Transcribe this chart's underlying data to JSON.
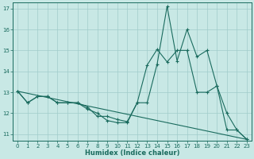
{
  "background_color": "#c8e8e5",
  "grid_color": "#a0ccca",
  "line_color": "#1a6b5e",
  "xlabel": "Humidex (Indice chaleur)",
  "xlim": [
    -0.5,
    23.5
  ],
  "ylim": [
    10.7,
    17.3
  ],
  "yticks": [
    11,
    12,
    13,
    14,
    15,
    16,
    17
  ],
  "xticks": [
    0,
    1,
    2,
    3,
    4,
    5,
    6,
    7,
    8,
    9,
    10,
    11,
    12,
    13,
    14,
    15,
    16,
    17,
    18,
    19,
    20,
    21,
    22,
    23
  ],
  "line1_x": [
    0,
    1,
    2,
    3,
    4,
    5,
    6,
    7,
    8,
    9,
    10,
    11,
    12,
    13,
    14,
    15,
    16,
    17,
    18,
    19,
    20,
    21,
    22,
    23
  ],
  "line1_y": [
    13.05,
    12.5,
    12.8,
    12.8,
    12.5,
    12.5,
    12.5,
    12.3,
    11.85,
    11.85,
    11.7,
    11.6,
    12.5,
    12.5,
    14.35,
    17.1,
    14.5,
    16.0,
    14.7,
    15.0,
    13.3,
    12.0,
    11.2,
    10.75
  ],
  "line2_x": [
    0,
    1,
    2,
    3,
    4,
    5,
    6,
    7,
    8,
    9,
    10,
    11,
    12,
    13,
    14,
    15,
    16,
    17,
    18,
    19,
    20,
    21,
    22,
    23
  ],
  "line2_y": [
    13.05,
    12.5,
    12.8,
    12.8,
    12.5,
    12.5,
    12.5,
    12.2,
    12.0,
    11.65,
    11.55,
    11.55,
    12.5,
    14.3,
    15.05,
    14.45,
    15.0,
    15.0,
    13.0,
    13.0,
    13.3,
    11.2,
    11.2,
    10.75
  ],
  "line3_x": [
    0,
    23
  ],
  "line3_y": [
    13.05,
    10.75
  ]
}
